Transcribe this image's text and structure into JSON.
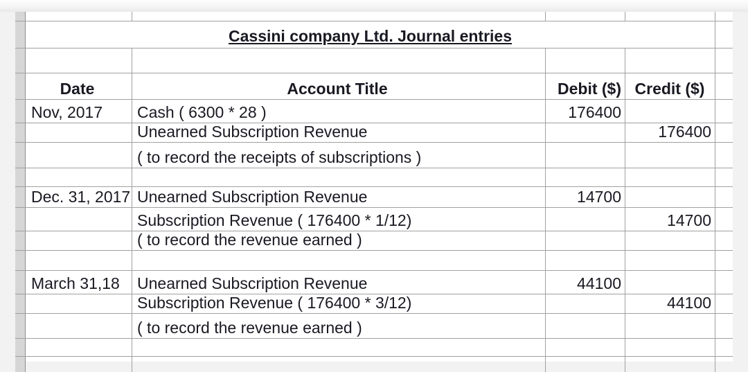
{
  "sheet": {
    "title": "Cassini company Ltd. Journal entries",
    "headers": {
      "date": "Date",
      "account": "Account Title",
      "debit": "Debit ($)",
      "credit": "Credit ($)"
    },
    "rows": [
      {
        "date": "Nov, 2017",
        "account": "Cash ( 6300 * 28 )",
        "debit": "176400",
        "credit": ""
      },
      {
        "date": "",
        "account": "Unearned Subscription Revenue",
        "debit": "",
        "credit": "176400"
      },
      {
        "date": "",
        "account": "( to record the receipts of subscriptions )",
        "debit": "",
        "credit": ""
      },
      {
        "date": "",
        "account": "",
        "debit": "",
        "credit": ""
      },
      {
        "date": "Dec. 31, 2017",
        "account": "Unearned Subscription Revenue",
        "debit": "14700",
        "credit": ""
      },
      {
        "date": "",
        "account": "Subscription Revenue ( 176400 * 1/12)",
        "debit": "",
        "credit": "14700"
      },
      {
        "date": "",
        "account": "( to record the revenue earned )",
        "debit": "",
        "credit": ""
      },
      {
        "date": "",
        "account": "",
        "debit": "",
        "credit": ""
      },
      {
        "date": "March 31,18",
        "account": "Unearned Subscription Revenue",
        "debit": "44100",
        "credit": ""
      },
      {
        "date": "",
        "account": "Subscription Revenue ( 176400 * 3/12)",
        "debit": "",
        "credit": "44100"
      },
      {
        "date": "",
        "account": "( to record the revenue earned )",
        "debit": "",
        "credit": ""
      },
      {
        "date": "",
        "account": "",
        "debit": "",
        "credit": ""
      }
    ],
    "colors": {
      "grid_line": "#a0a0a0",
      "row_stub_fill": "#d6d6d6",
      "text": "#191922",
      "cell_background": "#ffffff",
      "margin_background": "#f2f2f2"
    }
  }
}
